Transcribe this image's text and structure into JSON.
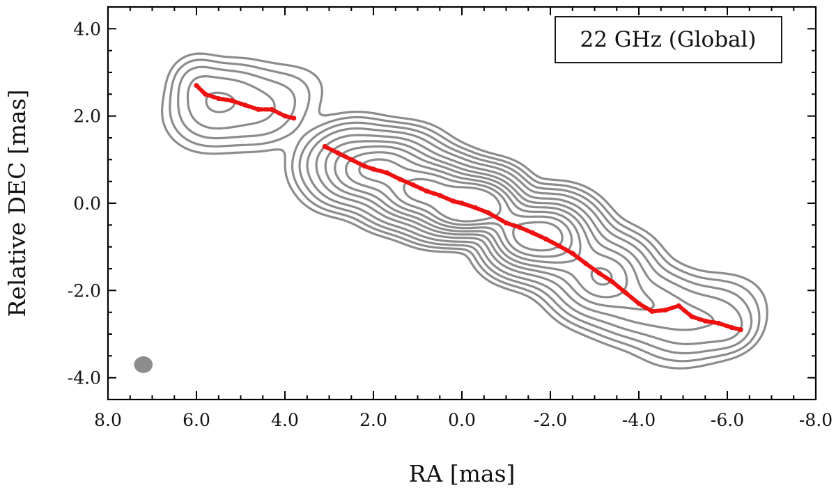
{
  "chart_data": {
    "type": "contour",
    "xlabel": "RA [mas]",
    "ylabel": "Relative DEC [mas]",
    "xlim": [
      8.0,
      -8.0
    ],
    "ylim": [
      -4.5,
      4.5
    ],
    "x_ticks": [
      "8.0",
      "6.0",
      "4.0",
      "2.0",
      "0.0",
      "-2.0",
      "-4.0",
      "-6.0",
      "-8.0"
    ],
    "x_tick_values": [
      8,
      6,
      4,
      2,
      0,
      -2,
      -4,
      -6,
      -8
    ],
    "y_ticks": [
      "4.0",
      "2.0",
      "0.0",
      "-2.0",
      "-4.0"
    ],
    "y_tick_values": [
      4,
      2,
      0,
      -2,
      -4
    ],
    "legend": {
      "text": "22 GHz (Global)",
      "placement": "top-right"
    },
    "colors": {
      "contour": "#8c8c8c",
      "ridge": "#ee1111",
      "axis": "#000000"
    },
    "beam": {
      "ra": 7.2,
      "dec": -3.7,
      "major": 0.38,
      "minor": 0.32
    },
    "ridge_line": [
      [
        6.0,
        2.7
      ],
      [
        5.8,
        2.5
      ],
      [
        5.5,
        2.4
      ],
      [
        5.2,
        2.35
      ],
      [
        4.9,
        2.25
      ],
      [
        4.6,
        2.15
      ],
      [
        4.3,
        2.15
      ],
      [
        4.0,
        2.0
      ],
      [
        3.8,
        1.95
      ],
      [
        3.1,
        1.3
      ],
      [
        2.8,
        1.15
      ],
      [
        2.5,
        1.0
      ],
      [
        2.2,
        0.85
      ],
      [
        2.0,
        0.78
      ],
      [
        1.7,
        0.7
      ],
      [
        1.4,
        0.55
      ],
      [
        1.1,
        0.42
      ],
      [
        0.8,
        0.28
      ],
      [
        0.5,
        0.18
      ],
      [
        0.2,
        0.05
      ],
      [
        0.0,
        0.0
      ],
      [
        -0.3,
        -0.1
      ],
      [
        -0.6,
        -0.22
      ],
      [
        -1.0,
        -0.45
      ],
      [
        -1.3,
        -0.55
      ],
      [
        -1.6,
        -0.68
      ],
      [
        -1.9,
        -0.82
      ],
      [
        -2.2,
        -0.98
      ],
      [
        -2.5,
        -1.15
      ],
      [
        -2.8,
        -1.38
      ],
      [
        -3.1,
        -1.6
      ],
      [
        -3.4,
        -1.8
      ],
      [
        -3.7,
        -2.05
      ],
      [
        -4.0,
        -2.3
      ],
      [
        -4.3,
        -2.48
      ],
      [
        -4.6,
        -2.45
      ],
      [
        -4.9,
        -2.35
      ],
      [
        -5.2,
        -2.6
      ],
      [
        -5.5,
        -2.7
      ],
      [
        -5.8,
        -2.75
      ],
      [
        -6.1,
        -2.85
      ],
      [
        -6.3,
        -2.9
      ]
    ]
  }
}
